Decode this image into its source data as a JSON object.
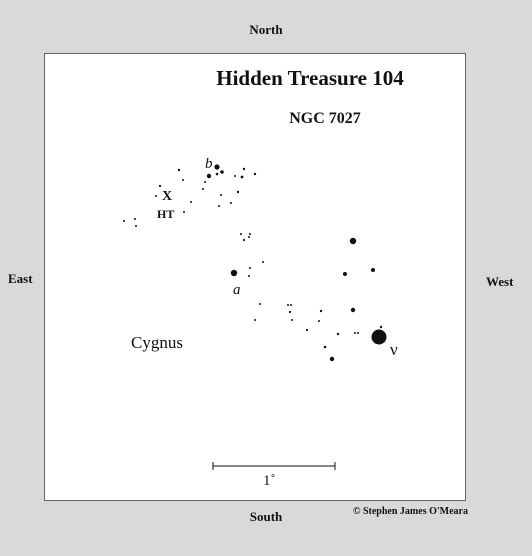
{
  "title": "Hidden Treasure 104",
  "subtitle": "NGC 7027",
  "directions": {
    "north": "North",
    "south": "South",
    "east": "East",
    "west": "West"
  },
  "labels": {
    "constellation": "Cygnus",
    "target_marker": "X",
    "target_abbrev": "HT",
    "star_b": "b",
    "star_a": "a",
    "star_nu": "ν"
  },
  "scale_bar": {
    "label": "1˚"
  },
  "copyright": "© Stephen James O'Meara",
  "colors": {
    "background": "#d9d9d9",
    "chart": "#ffffff",
    "ink": "#111111"
  }
}
